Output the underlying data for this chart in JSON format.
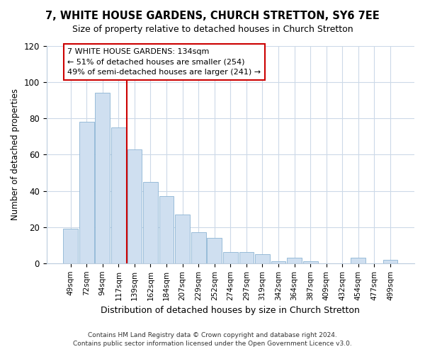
{
  "title": "7, WHITE HOUSE GARDENS, CHURCH STRETTON, SY6 7EE",
  "subtitle": "Size of property relative to detached houses in Church Stretton",
  "xlabel": "Distribution of detached houses by size in Church Stretton",
  "ylabel": "Number of detached properties",
  "bar_color": "#cfdff0",
  "bar_edge_color": "#8cb4d4",
  "categories": [
    "49sqm",
    "72sqm",
    "94sqm",
    "117sqm",
    "139sqm",
    "162sqm",
    "184sqm",
    "207sqm",
    "229sqm",
    "252sqm",
    "274sqm",
    "297sqm",
    "319sqm",
    "342sqm",
    "364sqm",
    "387sqm",
    "409sqm",
    "432sqm",
    "454sqm",
    "477sqm",
    "499sqm"
  ],
  "values": [
    19,
    78,
    94,
    75,
    63,
    45,
    37,
    27,
    17,
    14,
    6,
    6,
    5,
    1,
    3,
    1,
    0,
    0,
    3,
    0,
    2
  ],
  "ylim": [
    0,
    120
  ],
  "yticks": [
    0,
    20,
    40,
    60,
    80,
    100,
    120
  ],
  "annotation_title": "7 WHITE HOUSE GARDENS: 134sqm",
  "annotation_line1": "← 51% of detached houses are smaller (254)",
  "annotation_line2": "49% of semi-detached houses are larger (241) →",
  "footer1": "Contains HM Land Registry data © Crown copyright and database right 2024.",
  "footer2": "Contains public sector information licensed under the Open Government Licence v3.0.",
  "bg_color": "#ffffff",
  "grid_color": "#ccd9e8"
}
